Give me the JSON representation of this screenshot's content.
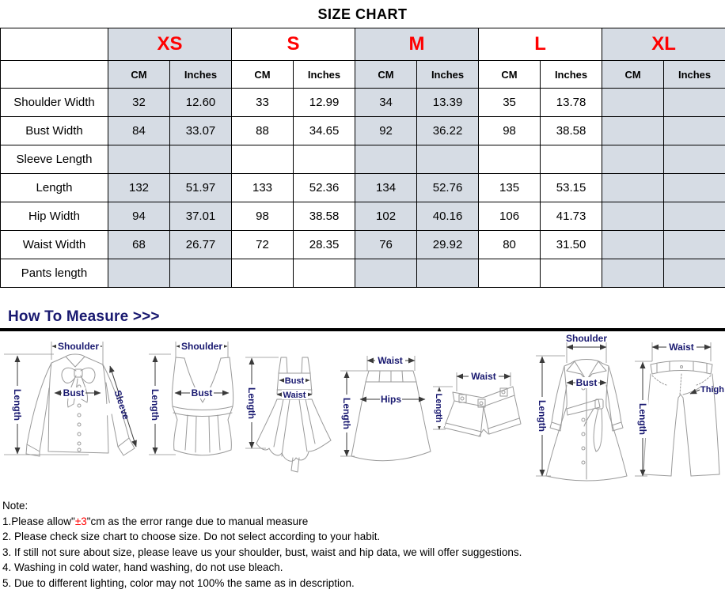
{
  "title": "SIZE CHART",
  "table": {
    "unit_labels": [
      "CM",
      "Inches"
    ],
    "sizes": [
      {
        "label": "XS",
        "shaded": true
      },
      {
        "label": "S",
        "shaded": false
      },
      {
        "label": "M",
        "shaded": true
      },
      {
        "label": "L",
        "shaded": false
      },
      {
        "label": "XL",
        "shaded": true
      }
    ],
    "rows": [
      {
        "label": "Shoulder Width",
        "values": [
          "32",
          "12.60",
          "33",
          "12.99",
          "34",
          "13.39",
          "35",
          "13.78",
          "",
          ""
        ]
      },
      {
        "label": "Bust Width",
        "values": [
          "84",
          "33.07",
          "88",
          "34.65",
          "92",
          "36.22",
          "98",
          "38.58",
          "",
          ""
        ]
      },
      {
        "label": "Sleeve Length",
        "values": [
          "",
          "",
          "",
          "",
          "",
          "",
          "",
          "",
          "",
          ""
        ]
      },
      {
        "label": "Length",
        "values": [
          "132",
          "51.97",
          "133",
          "52.36",
          "134",
          "52.76",
          "135",
          "53.15",
          "",
          ""
        ]
      },
      {
        "label": "Hip Width",
        "values": [
          "94",
          "37.01",
          "98",
          "38.58",
          "102",
          "40.16",
          "106",
          "41.73",
          "",
          ""
        ]
      },
      {
        "label": "Waist Width",
        "values": [
          "68",
          "26.77",
          "72",
          "28.35",
          "76",
          "29.92",
          "80",
          "31.50",
          "",
          ""
        ]
      },
      {
        "label": "Pants length",
        "values": [
          "",
          "",
          "",
          "",
          "",
          "",
          "",
          "",
          "",
          ""
        ]
      }
    ]
  },
  "measure": {
    "heading": "How To Measure >>>",
    "labels": {
      "shoulder": "Shoulder",
      "bust": "Bust",
      "sleeve": "Sleeve",
      "length": "Length",
      "waist": "Waist",
      "hips": "Hips",
      "thigh": "Thigh"
    }
  },
  "notes": {
    "title": "Note:",
    "items": [
      {
        "pre": "1.Please allow\"",
        "highlight": "±3",
        "post": "\"cm as the error range due to manual measure"
      },
      {
        "text": "2. Please check size chart to choose size. Do not select according to your habit."
      },
      {
        "text": "3. If still not sure about size, please leave us your shoulder, bust, waist and hip data, we will offer suggestions."
      },
      {
        "text": "4. Washing in cold water, hand washing, do not use bleach."
      },
      {
        "text": "5. Due to different lighting, color may not 100% the same as in description."
      }
    ]
  },
  "colors": {
    "shaded_cell": "#d6dce4",
    "size_label": "#ff0000",
    "heading_navy": "#191970",
    "note_highlight": "#ff0000"
  }
}
